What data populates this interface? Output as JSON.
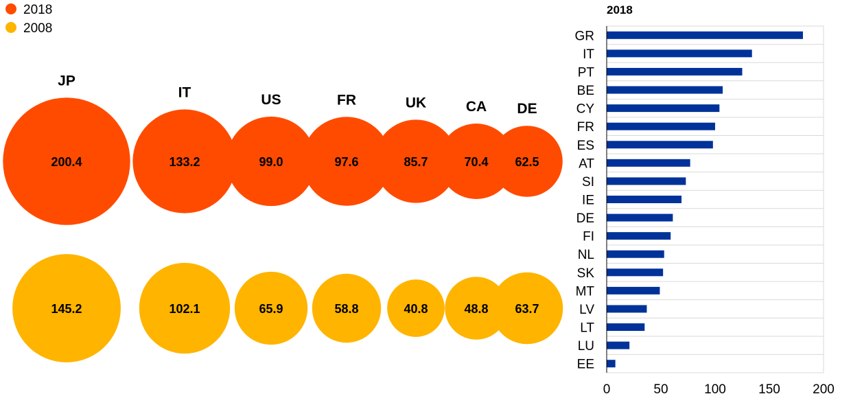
{
  "chart_data": [
    {
      "type": "bubble",
      "title": "",
      "legend": {
        "placement": "top-left",
        "entries": [
          {
            "label": "2018",
            "color": "#FF4B00"
          },
          {
            "label": "2008",
            "color": "#FFB400"
          }
        ]
      },
      "categories": [
        "JP",
        "IT",
        "US",
        "FR",
        "UK",
        "CA",
        "DE"
      ],
      "series": [
        {
          "name": "2018",
          "color": "#FF4B00",
          "values": [
            200.4,
            133.2,
            99.0,
            97.6,
            85.7,
            70.4,
            62.5
          ]
        },
        {
          "name": "2008",
          "color": "#FFB400",
          "values": [
            145.2,
            102.1,
            65.9,
            58.8,
            40.8,
            48.8,
            63.7
          ]
        }
      ]
    },
    {
      "type": "bar",
      "orientation": "horizontal",
      "title": "2018",
      "color": "#003299",
      "grid": true,
      "xlim": [
        0,
        200
      ],
      "xticks": [
        0,
        50,
        100,
        150,
        200
      ],
      "categories": [
        "GR",
        "IT",
        "PT",
        "BE",
        "CY",
        "FR",
        "ES",
        "AT",
        "SI",
        "IE",
        "DE",
        "FI",
        "NL",
        "SK",
        "MT",
        "LV",
        "LT",
        "LU",
        "EE"
      ],
      "values": [
        181,
        134,
        125,
        107,
        104,
        100,
        98,
        77,
        73,
        69,
        61,
        59,
        53,
        52,
        49,
        37,
        35,
        21,
        8
      ]
    }
  ]
}
